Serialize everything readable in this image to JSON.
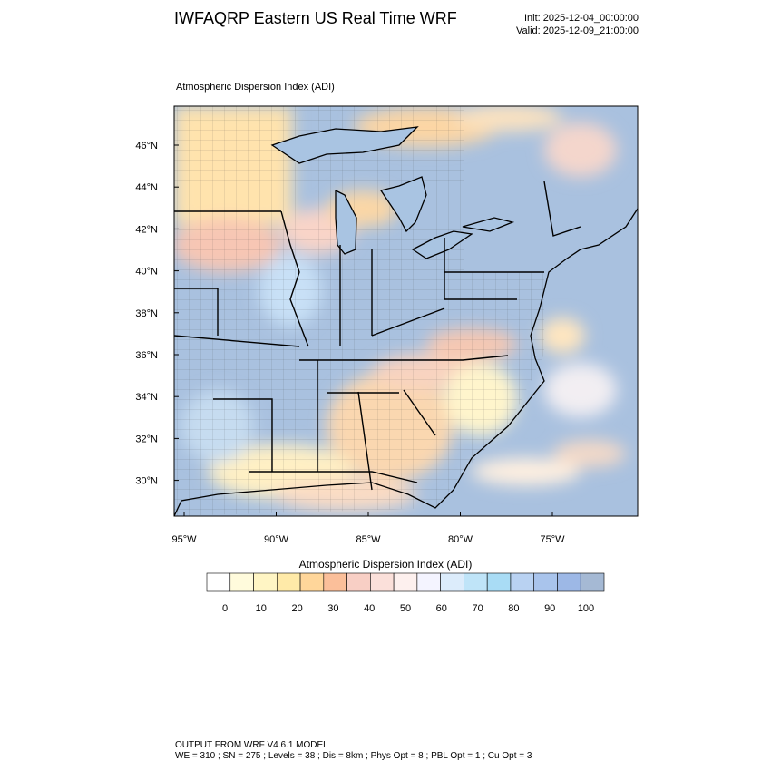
{
  "header": {
    "title": "IWFAQRP Eastern US Real Time WRF",
    "init": "Init: 2025-12-04_00:00:00",
    "valid": "Valid: 2025-12-09_21:00:00"
  },
  "plot": {
    "title": "Atmospheric Dispersion Index   (ADI)",
    "lat_labels": [
      "46°N",
      "44°N",
      "42°N",
      "40°N",
      "38°N",
      "36°N",
      "34°N",
      "32°N",
      "30°N"
    ],
    "lon_labels": [
      "95°W",
      "90°W",
      "85°W",
      "80°W",
      "75°W"
    ]
  },
  "colorbar": {
    "title": "Atmospheric Dispersion Index  (ADI)",
    "tick_labels": [
      "0",
      "10",
      "20",
      "30",
      "40",
      "50",
      "60",
      "70",
      "80",
      "90",
      "100"
    ],
    "colors": [
      "#ffffff",
      "#fffbdc",
      "#fff5c4",
      "#ffeaa8",
      "#ffd69a",
      "#fbbf9a",
      "#f8cfc5",
      "#fbe0da",
      "#fdf0ee",
      "#f4f4ff",
      "#dcecfb",
      "#bfe4f8",
      "#a9dcf5",
      "#b9d2f2",
      "#a9c4ec",
      "#9db8e6",
      "#a5b9d4"
    ]
  },
  "footer": {
    "line1": "OUTPUT FROM WRF V4.6.1 MODEL",
    "line2": "WE = 310 ; SN = 275 ; Levels = 38 ; Dis = 8km ; Phys Opt = 8 ; PBL Opt = 1 ; Cu Opt = 3"
  }
}
